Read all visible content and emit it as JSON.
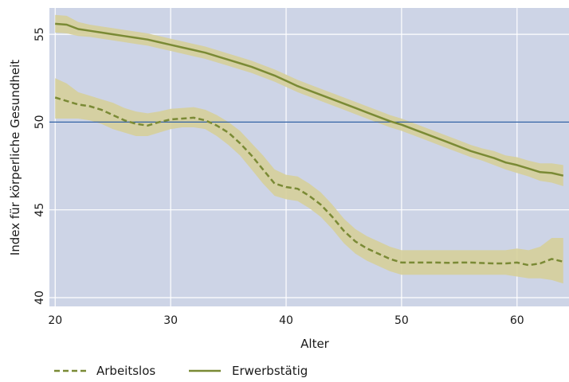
{
  "chart_data": {
    "type": "line",
    "title": "",
    "xlabel": "Alter",
    "ylabel": "Index für körperliche Gesundheit",
    "xlim": [
      19.5,
      64.5
    ],
    "ylim": [
      39.5,
      56.5
    ],
    "xticks": [
      20,
      30,
      40,
      50,
      60
    ],
    "yticks": [
      40,
      45,
      50,
      55
    ],
    "xtick_labels": [
      "20",
      "30",
      "40",
      "50",
      "60"
    ],
    "ytick_labels": [
      "40",
      "45",
      "50",
      "55"
    ],
    "grid": true,
    "reference_line": {
      "y": 50,
      "color": "#2e5fa3"
    },
    "legend_position": "bottom",
    "colors": {
      "plot_background": "#cdd4e6",
      "band": "#d6cf9a",
      "line": "#7a8a35"
    },
    "series": [
      {
        "name": "Arbeitslos",
        "style": "dashed",
        "x": [
          20,
          21,
          22,
          23,
          24,
          25,
          26,
          27,
          28,
          29,
          30,
          31,
          32,
          33,
          34,
          35,
          36,
          37,
          38,
          39,
          40,
          41,
          42,
          43,
          44,
          45,
          46,
          47,
          48,
          49,
          50,
          51,
          52,
          53,
          54,
          55,
          56,
          57,
          58,
          59,
          60,
          61,
          62,
          63,
          64
        ],
        "y": [
          51.4,
          51.2,
          51.0,
          50.9,
          50.7,
          50.4,
          50.1,
          49.9,
          49.8,
          50.0,
          50.15,
          50.2,
          50.25,
          50.1,
          49.8,
          49.4,
          48.8,
          48.1,
          47.3,
          46.5,
          46.3,
          46.2,
          45.8,
          45.3,
          44.6,
          43.8,
          43.2,
          42.8,
          42.5,
          42.2,
          42.0,
          42.0,
          42.0,
          42.0,
          41.98,
          42.0,
          42.0,
          41.97,
          41.95,
          41.95,
          42.0,
          41.85,
          41.95,
          42.2,
          42.05
        ],
        "lower": [
          50.2,
          50.2,
          50.2,
          50.1,
          49.9,
          49.6,
          49.4,
          49.2,
          49.2,
          49.4,
          49.6,
          49.7,
          49.7,
          49.6,
          49.2,
          48.7,
          48.1,
          47.3,
          46.5,
          45.8,
          45.6,
          45.5,
          45.1,
          44.6,
          43.9,
          43.1,
          42.5,
          42.1,
          41.8,
          41.5,
          41.3,
          41.3,
          41.3,
          41.3,
          41.3,
          41.3,
          41.3,
          41.3,
          41.3,
          41.3,
          41.2,
          41.1,
          41.1,
          41.0,
          40.8
        ],
        "upper": [
          52.5,
          52.2,
          51.7,
          51.5,
          51.3,
          51.1,
          50.8,
          50.6,
          50.5,
          50.6,
          50.75,
          50.8,
          50.85,
          50.7,
          50.4,
          50.0,
          49.5,
          48.8,
          48.1,
          47.3,
          47.0,
          46.9,
          46.5,
          46.0,
          45.3,
          44.5,
          43.9,
          43.5,
          43.2,
          42.9,
          42.7,
          42.7,
          42.7,
          42.7,
          42.7,
          42.7,
          42.7,
          42.7,
          42.7,
          42.7,
          42.8,
          42.7,
          42.9,
          43.4,
          43.4
        ]
      },
      {
        "name": "Erwerbstätig",
        "style": "solid",
        "x": [
          20,
          21,
          22,
          23,
          24,
          25,
          26,
          27,
          28,
          29,
          30,
          31,
          32,
          33,
          34,
          35,
          36,
          37,
          38,
          39,
          40,
          41,
          42,
          43,
          44,
          45,
          46,
          47,
          48,
          49,
          50,
          51,
          52,
          53,
          54,
          55,
          56,
          57,
          58,
          59,
          60,
          61,
          62,
          63,
          64
        ],
        "y": [
          55.6,
          55.55,
          55.3,
          55.2,
          55.1,
          55.0,
          54.9,
          54.8,
          54.7,
          54.55,
          54.4,
          54.25,
          54.1,
          53.95,
          53.75,
          53.55,
          53.35,
          53.15,
          52.9,
          52.65,
          52.35,
          52.05,
          51.8,
          51.55,
          51.3,
          51.05,
          50.8,
          50.55,
          50.3,
          50.05,
          49.85,
          49.6,
          49.35,
          49.1,
          48.85,
          48.6,
          48.35,
          48.15,
          47.95,
          47.7,
          47.55,
          47.35,
          47.15,
          47.1,
          46.95
        ],
        "lower": [
          55.1,
          55.05,
          54.9,
          54.85,
          54.75,
          54.65,
          54.55,
          54.45,
          54.35,
          54.2,
          54.05,
          53.9,
          53.75,
          53.6,
          53.4,
          53.2,
          53.0,
          52.8,
          52.55,
          52.3,
          52.0,
          51.7,
          51.45,
          51.2,
          50.95,
          50.7,
          50.45,
          50.2,
          49.95,
          49.7,
          49.5,
          49.25,
          49.0,
          48.75,
          48.5,
          48.25,
          48.0,
          47.8,
          47.55,
          47.3,
          47.1,
          46.9,
          46.65,
          46.55,
          46.35
        ],
        "upper": [
          56.1,
          56.05,
          55.7,
          55.55,
          55.45,
          55.35,
          55.25,
          55.15,
          55.05,
          54.9,
          54.75,
          54.6,
          54.45,
          54.3,
          54.1,
          53.9,
          53.7,
          53.5,
          53.25,
          53.0,
          52.7,
          52.4,
          52.15,
          51.9,
          51.65,
          51.4,
          51.15,
          50.9,
          50.65,
          50.4,
          50.2,
          49.95,
          49.7,
          49.45,
          49.2,
          48.95,
          48.7,
          48.5,
          48.35,
          48.1,
          48.0,
          47.8,
          47.65,
          47.65,
          47.55
        ]
      }
    ]
  }
}
